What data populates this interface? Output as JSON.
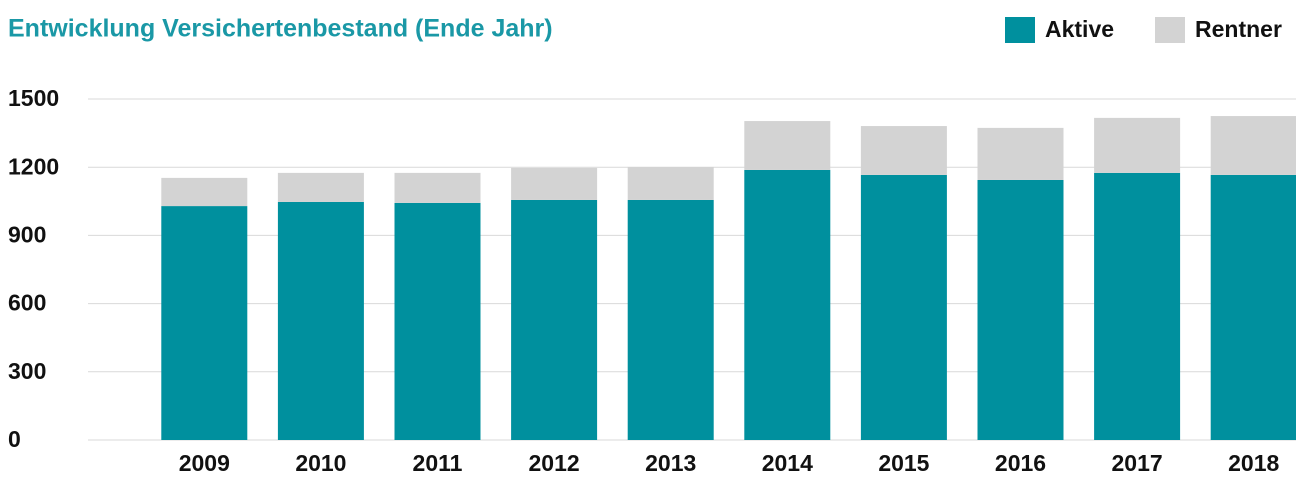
{
  "chart_data": {
    "type": "stacked_bar",
    "title": "Entwicklung Versichertenbestand (Ende Jahr)",
    "categories": [
      "2009",
      "2010",
      "2011",
      "2012",
      "2013",
      "2014",
      "2015",
      "2016",
      "2017",
      "2018"
    ],
    "series": [
      {
        "name": "Aktive",
        "color": "#00909e",
        "values": [
          1029,
          1047,
          1043,
          1056,
          1056,
          1188,
          1166,
          1144,
          1175,
          1166
        ]
      },
      {
        "name": "Rentner",
        "color": "#d3d3d3",
        "values": [
          124,
          128,
          132,
          141,
          145,
          215,
          215,
          229,
          242,
          259
        ]
      }
    ],
    "ylim": [
      0,
      1500
    ],
    "yticks": [
      0,
      300,
      600,
      900,
      1200,
      1500
    ],
    "grid": true,
    "legend": "top-right"
  }
}
